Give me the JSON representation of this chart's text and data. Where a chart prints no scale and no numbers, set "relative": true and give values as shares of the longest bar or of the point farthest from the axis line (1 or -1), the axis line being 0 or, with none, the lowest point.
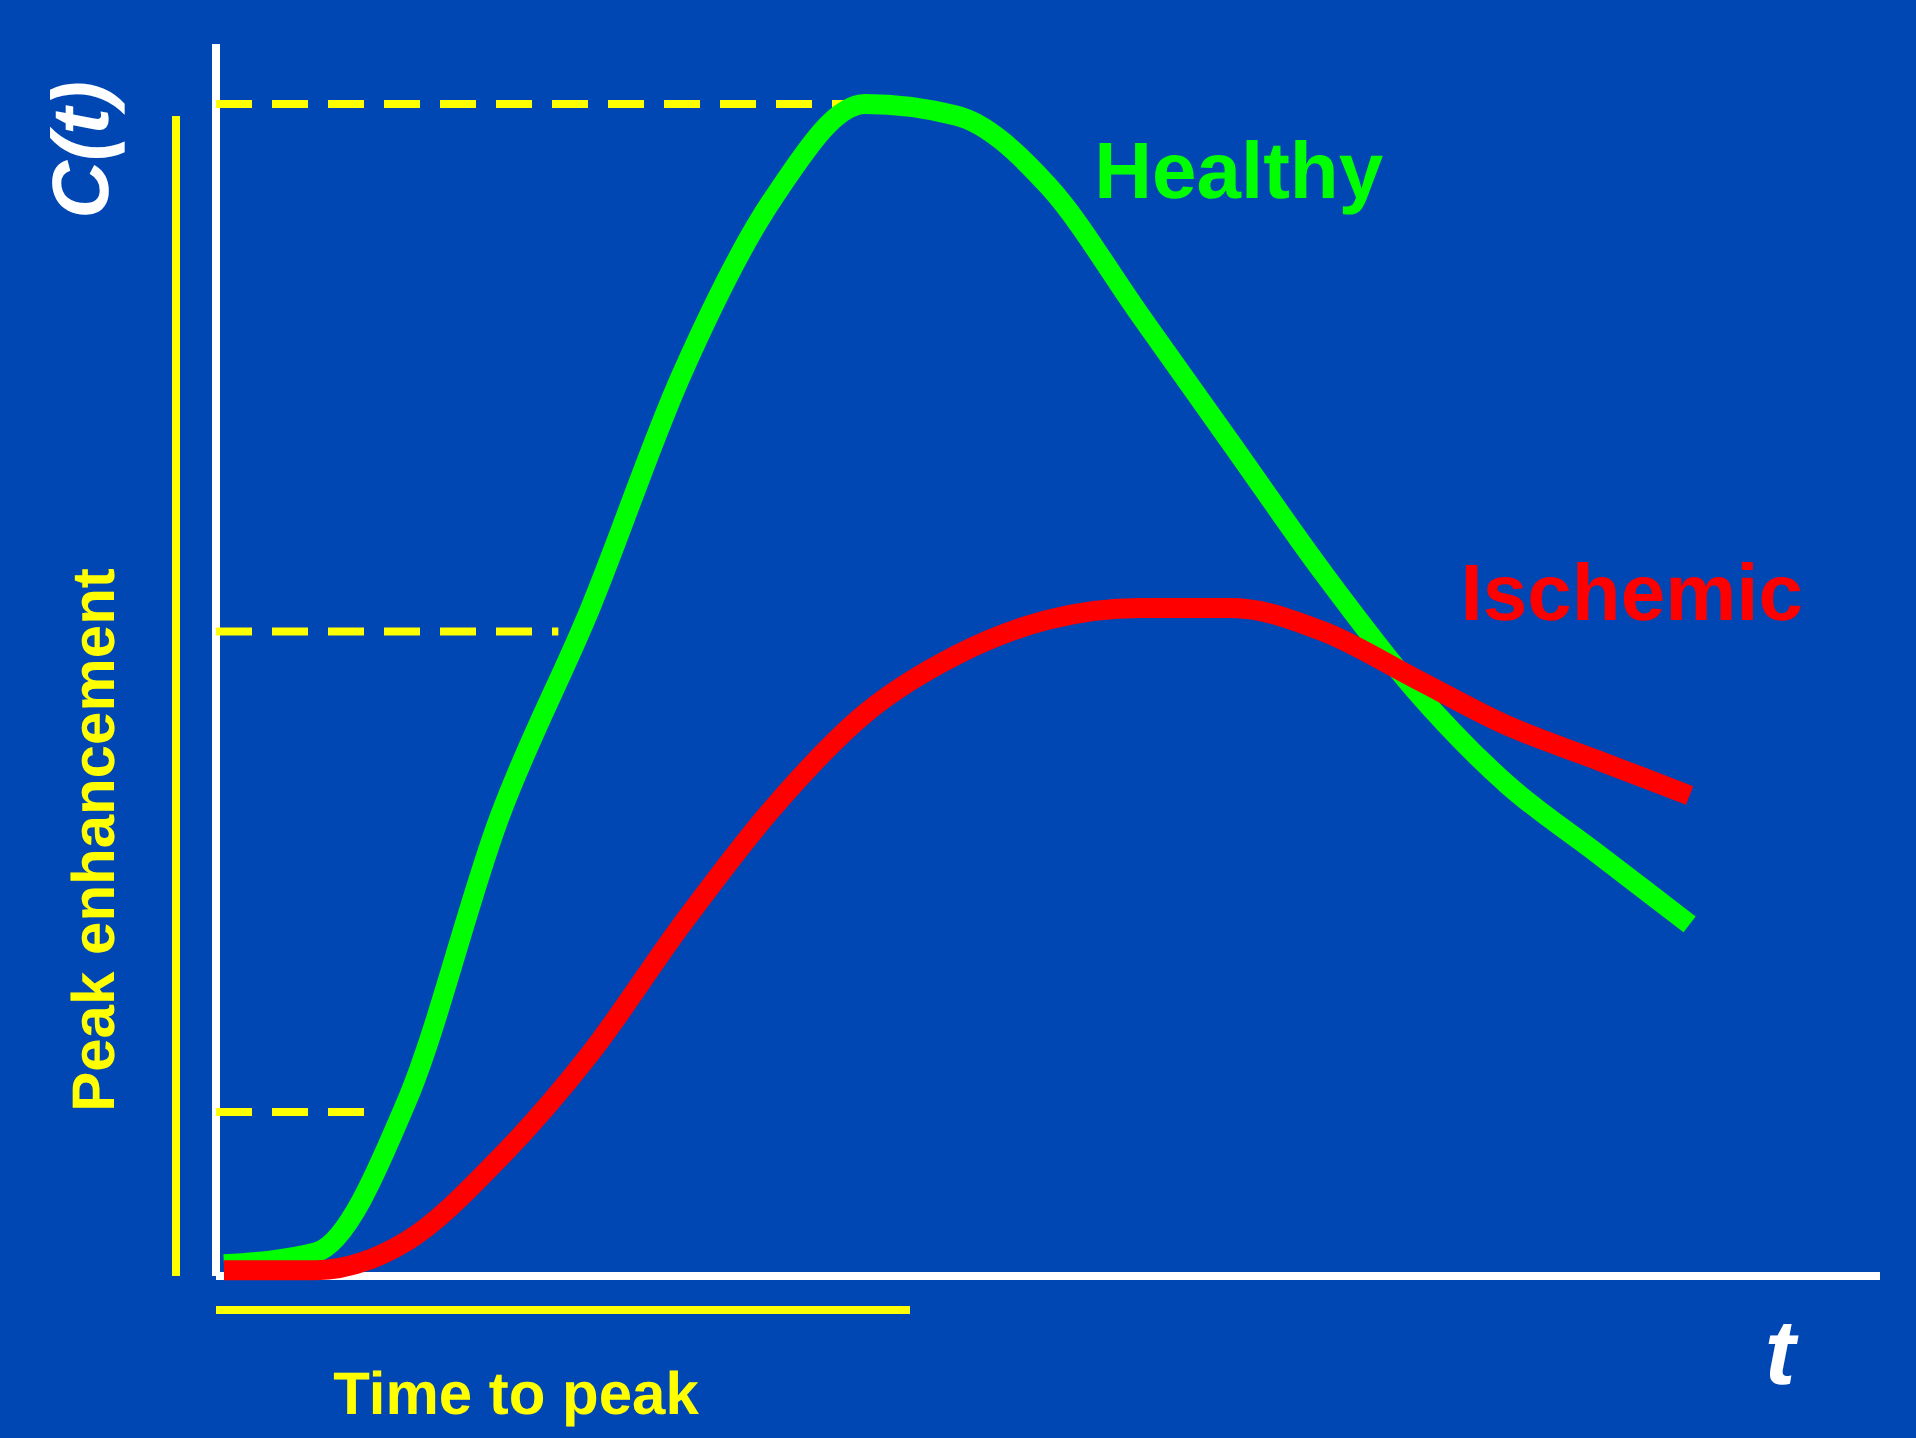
{
  "chart_data": {
    "type": "line",
    "relative": true,
    "ylabel": "C(t)",
    "xlabel": "t",
    "categories": [
      null,
      null,
      null,
      null,
      null,
      null,
      null,
      null,
      null,
      null,
      null,
      null,
      null,
      null,
      null,
      null,
      null
    ],
    "series": [
      {
        "name": "Healthy",
        "color": "#00ff00",
        "values": [
          0.01,
          0.02,
          0.15,
          0.39,
          0.57,
          0.77,
          0.92,
          1,
          0.99,
          0.93,
          0.82,
          0.71,
          0.6,
          0.5,
          0.42,
          0.36,
          0.3
        ]
      },
      {
        "name": "Ischemic",
        "color": "#ff0000",
        "values": [
          0.005,
          0.005,
          0.03,
          0.1,
          0.19,
          0.3,
          0.4,
          0.48,
          0.53,
          0.56,
          0.57,
          0.57,
          0.55,
          0.51,
          0.47,
          0.44,
          0.41
        ]
      }
    ],
    "ref_lines": [
      {
        "axis": "y",
        "value": 1,
        "color": "#ffff00",
        "line_style": "dashed"
      },
      {
        "axis": "y",
        "value": 0.55,
        "color": "#ffff00",
        "line_style": "dashed"
      },
      {
        "axis": "y",
        "value": 0.14,
        "color": "#ffff00",
        "line_style": "dashed"
      }
    ],
    "annotations": [
      "Peak enhancement",
      "Time to peak"
    ],
    "legend": false,
    "grid": false
  }
}
